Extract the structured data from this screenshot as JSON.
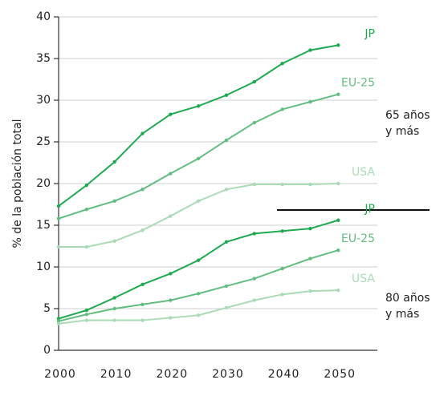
{
  "chart_data": {
    "type": "line",
    "ylabel": "% de la población total",
    "x": [
      2000,
      2005,
      2010,
      2015,
      2020,
      2025,
      2030,
      2035,
      2040,
      2045,
      2050
    ],
    "xlim": [
      2000,
      2057
    ],
    "xticks": [
      2000,
      2010,
      2020,
      2030,
      2040,
      2050
    ],
    "ylim": [
      0,
      40
    ],
    "yticks": [
      0,
      5,
      10,
      15,
      20,
      25,
      30,
      35,
      40
    ],
    "grid": true,
    "series": [
      {
        "name": "JP",
        "color": "#1faa52",
        "values": [
          17.3,
          19.8,
          22.6,
          26.0,
          28.3,
          29.3,
          30.6,
          32.2,
          34.4,
          36.0,
          36.6
        ]
      },
      {
        "name": "EU-25",
        "color": "#62be80",
        "values": [
          15.8,
          16.9,
          17.9,
          19.3,
          21.2,
          23.0,
          25.2,
          27.3,
          28.9,
          29.8,
          30.7
        ]
      },
      {
        "name": "USA",
        "color": "#aadbb6",
        "values": [
          12.4,
          12.4,
          13.1,
          14.4,
          16.1,
          17.9,
          19.3,
          19.9,
          19.9,
          19.9,
          20.0
        ]
      },
      {
        "name": "JP",
        "color": "#1faa52",
        "values": [
          3.8,
          4.8,
          6.3,
          7.9,
          9.2,
          10.8,
          13.0,
          14.0,
          14.3,
          14.6,
          15.6
        ]
      },
      {
        "name": "EU-25",
        "color": "#62be80",
        "values": [
          3.5,
          4.3,
          5.0,
          5.5,
          6.0,
          6.8,
          7.7,
          8.6,
          9.8,
          11.0,
          12.0
        ]
      },
      {
        "name": "USA",
        "color": "#aadbb6",
        "values": [
          3.2,
          3.6,
          3.6,
          3.6,
          3.9,
          4.2,
          5.1,
          6.0,
          6.7,
          7.1,
          7.2
        ]
      }
    ],
    "annotations": [
      [
        "65 años",
        "y más"
      ],
      [
        "80 años",
        "y más"
      ]
    ]
  }
}
